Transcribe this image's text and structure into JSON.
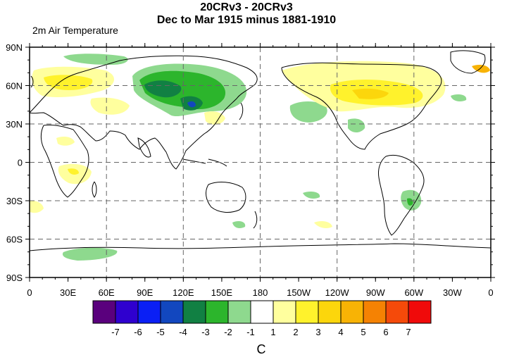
{
  "title_line1": "20CRv3 - 20CRv3",
  "title_line2": "Dec to Mar 1915 minus 1881-1910",
  "subtitle": "2m Air Temperature",
  "lat_labels": [
    "90N",
    "60N",
    "30N",
    "0",
    "30S",
    "60S",
    "90S"
  ],
  "lon_labels": [
    "0",
    "30E",
    "60E",
    "90E",
    "120E",
    "150E",
    "180",
    "150W",
    "120W",
    "90W",
    "60W",
    "30W",
    "0"
  ],
  "colorbar": {
    "colors": [
      "#5a007d",
      "#2f00cf",
      "#0a1ff5",
      "#1247bf",
      "#118043",
      "#2cb52c",
      "#8ed98e",
      "#ffffff",
      "#ffff9e",
      "#fff22c",
      "#fcd60c",
      "#f8b305",
      "#f58203",
      "#f54a0a",
      "#f00a0a"
    ],
    "labels": [
      "-7",
      "-6",
      "-5",
      "-4",
      "-3",
      "-2",
      "-1",
      "1",
      "2",
      "3",
      "4",
      "5",
      "6",
      "7"
    ],
    "units": "C"
  }
}
